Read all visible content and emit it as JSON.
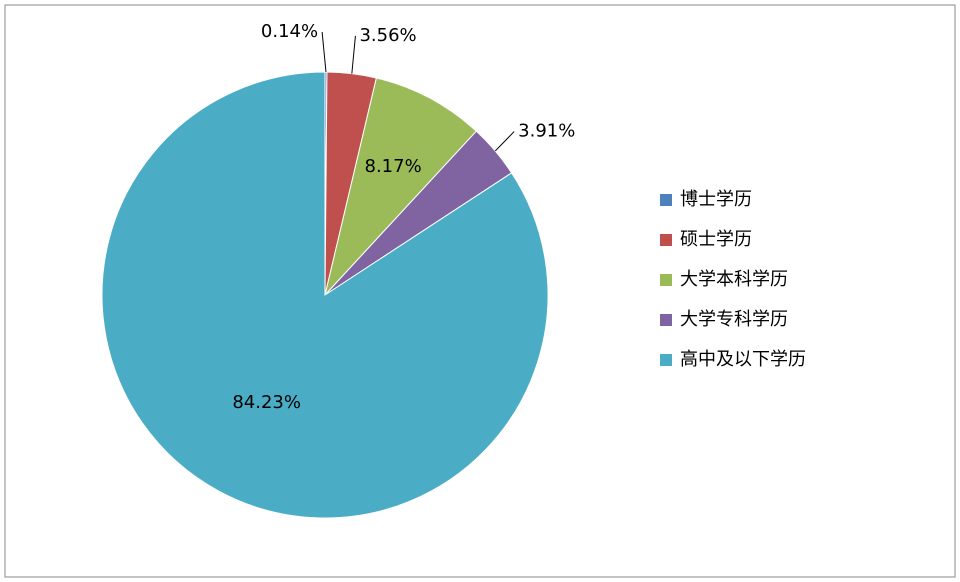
{
  "chart_data": {
    "type": "pie",
    "categories": [
      "博士学历",
      "硕士学历",
      "大学本科学历",
      "大学专科学历",
      "高中及以下学历"
    ],
    "values": [
      0.14,
      3.56,
      8.17,
      3.91,
      84.23
    ],
    "value_labels": [
      "0.14%",
      "3.56%",
      "8.17%",
      "3.91%",
      "84.23%"
    ],
    "colors": [
      "#4F81BD",
      "#C0504D",
      "#9BBB59",
      "#8064A2",
      "#4BACC6"
    ],
    "legend": "right"
  }
}
